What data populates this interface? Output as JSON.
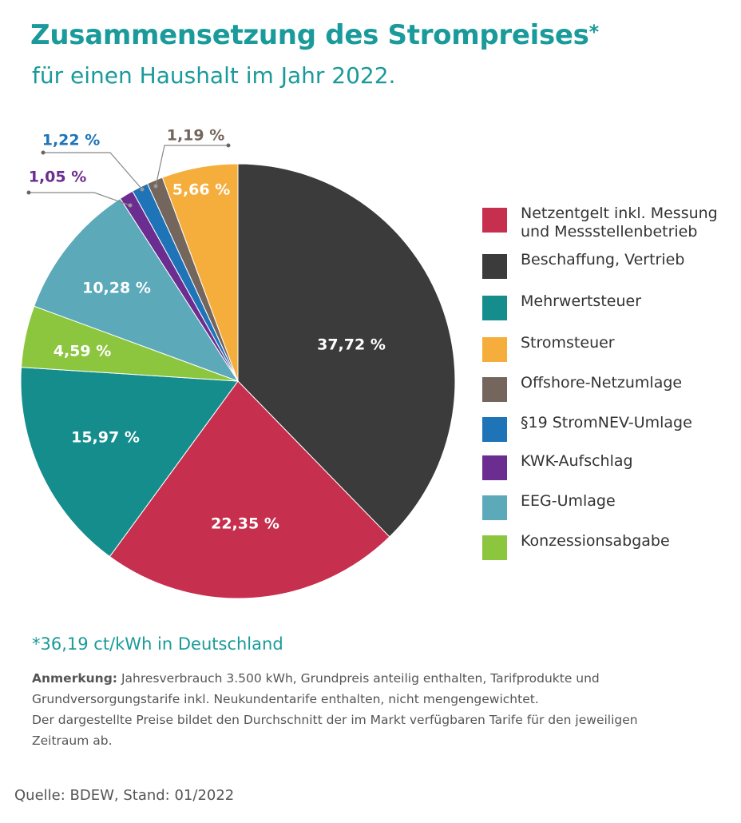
{
  "header": {
    "title": "Zusammensetzung des Strompreises",
    "title_mark": "*",
    "subtitle": "für einen Haushalt im Jahr 2022."
  },
  "chart_data": {
    "type": "pie",
    "slices": [
      {
        "name": "Beschaffung, Vertrieb",
        "value": 37.72,
        "label": "37,72 %",
        "color": "#3b3b3b"
      },
      {
        "name": "Netzentgelt inkl. Messung und Messstellenbetrieb",
        "value": 22.35,
        "label": "22,35 %",
        "color": "#c62f4e"
      },
      {
        "name": "Mehrwertsteuer",
        "value": 15.97,
        "label": "15,97 %",
        "color": "#158d8d"
      },
      {
        "name": "Konzessionsabgabe",
        "value": 4.59,
        "label": "4,59 %",
        "color": "#8cc63f"
      },
      {
        "name": "EEG-Umlage",
        "value": 10.28,
        "label": "10,28 %",
        "color": "#5ba9b9"
      },
      {
        "name": "KWK-Aufschlag",
        "value": 1.05,
        "label": "1,05 %",
        "color": "#6b2d8f"
      },
      {
        "name": "§19 StromNEV-Umlage",
        "value": 1.22,
        "label": "1,22 %",
        "color": "#1f73b7"
      },
      {
        "name": "Offshore-Netzumlage",
        "value": 1.19,
        "label": "1,19 %",
        "color": "#74665d"
      },
      {
        "name": "Stromsteuer",
        "value": 5.66,
        "label": "5,66 %",
        "color": "#f5ae3c"
      }
    ],
    "legend": {
      "placement": "right",
      "items": [
        {
          "label": "Netzentgelt inkl. Messung und Messstellenbetrieb",
          "color": "#c62f4e"
        },
        {
          "label": "Beschaffung, Vertrieb",
          "color": "#3b3b3b"
        },
        {
          "label": "Mehrwertsteuer",
          "color": "#158d8d"
        },
        {
          "label": "Stromsteuer",
          "color": "#f5ae3c"
        },
        {
          "label": "Offshore-Netzumlage",
          "color": "#74665d"
        },
        {
          "label": "§19 StromNEV-Umlage",
          "color": "#1f73b7"
        },
        {
          "label": "KWK-Aufschlag",
          "color": "#6b2d8f"
        },
        {
          "label": "EEG-Umlage",
          "color": "#5ba9b9"
        },
        {
          "label": "Konzessionsabgabe",
          "color": "#8cc63f"
        }
      ]
    }
  },
  "footnote": "*36,19 ct/kWh in Deutschland",
  "note": {
    "label": "Anmerkung:",
    "line1": " Jahresverbrauch 3.500 kWh, Grundpreis anteilig enthalten, Tarifprodukte und Grundversorgungstarife inkl. Neukundentarife enthalten, nicht mengengewichtet.",
    "line2": "Der dargestellte Preise bildet den Durchschnitt der im Markt verfügbaren Tarife für den jeweiligen Zeitraum ab."
  },
  "source": "Quelle: BDEW, Stand: 01/2022"
}
